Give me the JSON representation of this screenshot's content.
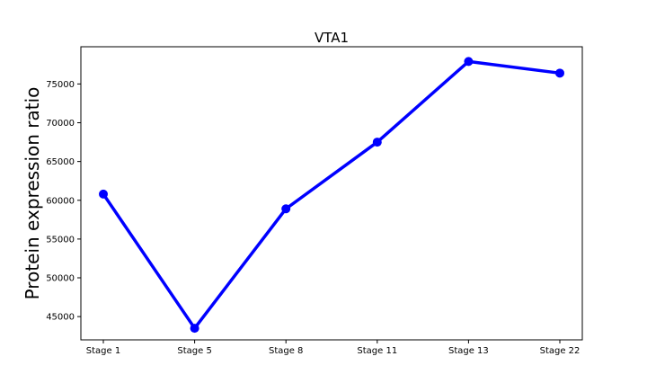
{
  "chart_data": {
    "type": "line",
    "title": "VTA1",
    "xlabel": "",
    "ylabel": "Protein expression ratio",
    "categories": [
      "Stage 1",
      "Stage 5",
      "Stage 8",
      "Stage 11",
      "Stage 13",
      "Stage 22"
    ],
    "series": [
      {
        "values": [
          60800,
          43500,
          58900,
          67500,
          77900,
          76400
        ],
        "color": "#0000ff"
      }
    ],
    "ylim": [
      42000,
      79800
    ],
    "yticks": [
      45000,
      50000,
      55000,
      60000,
      65000,
      70000,
      75000
    ],
    "ytick_labels": [
      "45000",
      "50000",
      "55000",
      "60000",
      "65000",
      "70000",
      "75000"
    ],
    "grid": false,
    "legend": false
  }
}
